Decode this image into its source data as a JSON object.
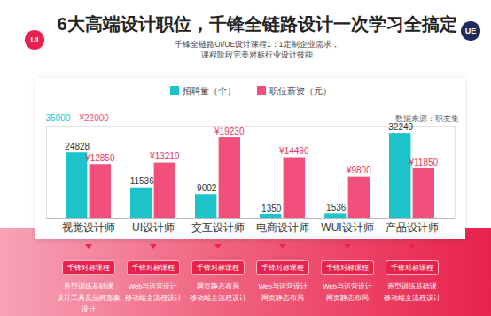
{
  "chart_data": {
    "type": "bar",
    "title": "6大高端设计职位，千锋全链路设计一次学习全搞定",
    "subtitle": [
      "千锋全链路UI/UE设计课程1：1定制企业需求，",
      "课程阶段完美对标行业设计技能"
    ],
    "source": "数据来源：职友集",
    "categories": [
      "视觉设计师",
      "UI设计师",
      "交互设计师",
      "电商设计师",
      "WUI设计师",
      "产品设计师"
    ],
    "series": [
      {
        "name": "招聘量（个）",
        "color": "#1cc3c9",
        "values": [
          24828,
          11536,
          9002,
          1350,
          1536,
          32249
        ]
      },
      {
        "name": "职位薪资（元）",
        "color": "#f0507a",
        "axis": "y2",
        "values": [
          12850,
          13210,
          19230,
          14490,
          9800,
          11850
        ],
        "value_labels": [
          "¥12850",
          "¥13210",
          "¥19230",
          "¥14490",
          "¥9800",
          "¥11850"
        ]
      }
    ],
    "ylim": [
      0,
      35000
    ],
    "yticks": [
      35000
    ],
    "y2lim": [
      0,
      22000
    ],
    "y2ticks": [
      {
        "value": 22000,
        "label": "¥22000"
      }
    ],
    "grid": true,
    "data_labels": true,
    "legend": "top"
  },
  "badges": [
    "UI",
    "UE"
  ],
  "courses": [
    {
      "label": "千锋对标课程",
      "items": [
        "造型训练基础课",
        "设计工具及品牌形象设计"
      ]
    },
    {
      "label": "千锋对标课程",
      "items": [
        "Web与运营设计",
        "移动端全流程设计"
      ]
    },
    {
      "label": "千锋对标课程",
      "items": [
        "网页静态布局",
        "移动端全流程设计"
      ]
    },
    {
      "label": "千锋对标课程",
      "items": [
        "Web与运营设计",
        "网页静态布局"
      ]
    },
    {
      "label": "千锋对标课程",
      "items": [
        "Web与运营设计",
        "网页静态布局"
      ]
    },
    {
      "label": "千锋对标课程",
      "items": [
        "造型训练基础课",
        "移动端全流程设计"
      ]
    }
  ]
}
